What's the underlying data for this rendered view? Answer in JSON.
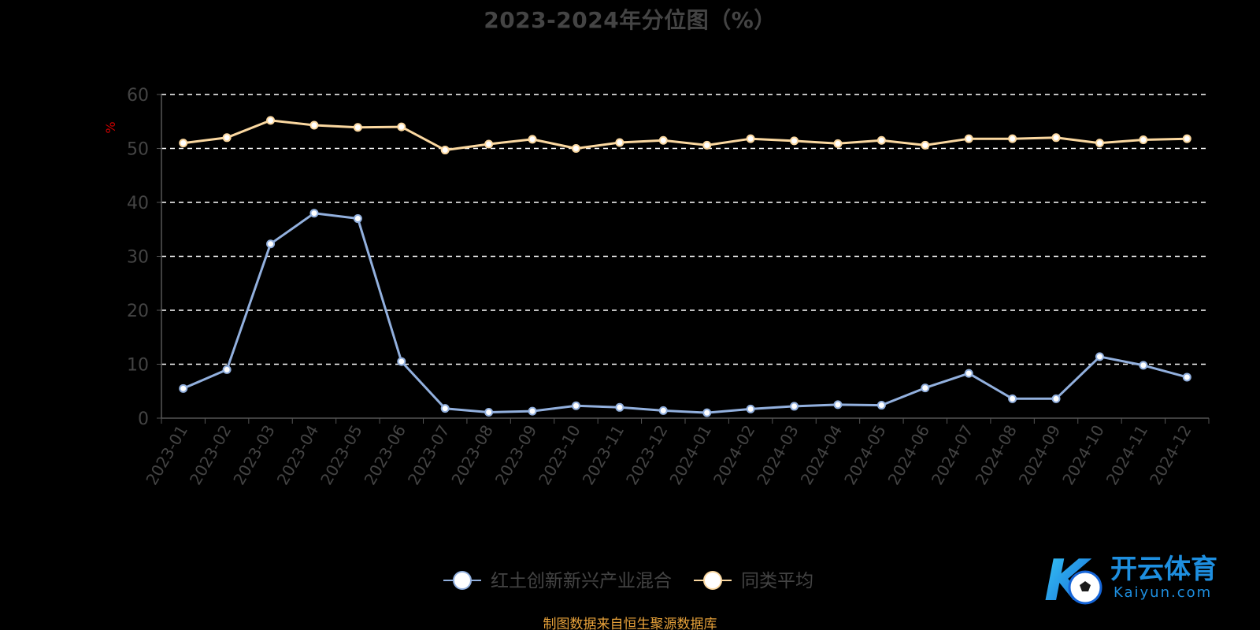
{
  "chart_data": {
    "type": "line",
    "title": "2023-2024年分位图（%）",
    "ylabel": "%",
    "xlabel": "",
    "ylim": [
      0,
      60
    ],
    "yticks": [
      0,
      10,
      20,
      30,
      40,
      50,
      60
    ],
    "grid": true,
    "grid_style": "dashed-horizontal",
    "legend_position": "bottom-center",
    "categories": [
      "2023-01",
      "2023-02",
      "2023-03",
      "2023-04",
      "2023-05",
      "2023-06",
      "2023-07",
      "2023-08",
      "2023-09",
      "2023-10",
      "2023-11",
      "2023-12",
      "2024-01",
      "2024-02",
      "2024-03",
      "2024-04",
      "2024-05",
      "2024-06",
      "2024-07",
      "2024-08",
      "2024-09",
      "2024-10",
      "2024-11",
      "2024-12"
    ],
    "series": [
      {
        "name": "红土创新新兴产业混合",
        "color": "#92b0de",
        "values": [
          5.5,
          9.0,
          32.3,
          38.0,
          37.0,
          10.5,
          1.8,
          1.1,
          1.3,
          2.3,
          2.0,
          1.4,
          1.0,
          1.7,
          2.2,
          2.5,
          2.4,
          5.6,
          8.3,
          3.6,
          3.6,
          11.4,
          9.8,
          7.6
        ]
      },
      {
        "name": "同类平均",
        "color": "#fbd8a0",
        "values": [
          51.0,
          52.0,
          55.2,
          54.3,
          53.9,
          54.0,
          49.7,
          50.8,
          51.7,
          50.0,
          51.1,
          51.5,
          50.6,
          51.8,
          51.4,
          50.9,
          51.5,
          50.6,
          51.8,
          51.8,
          52.0,
          51.0,
          51.6,
          51.8
        ]
      }
    ]
  },
  "footer": {
    "source": "制图数据来自恒生聚源数据库"
  },
  "watermark": {
    "brand_text": "开云体育",
    "domain_text": "Kaiyun.com",
    "logo_letter": "K"
  },
  "colors": {
    "background": "#000000",
    "axis": "#555555",
    "grid": "#ffffff",
    "tick_text": "#444444",
    "ylabel": "#cc0000",
    "source_text": "#e8a23a",
    "watermark_blue": "#1e8fe0"
  }
}
